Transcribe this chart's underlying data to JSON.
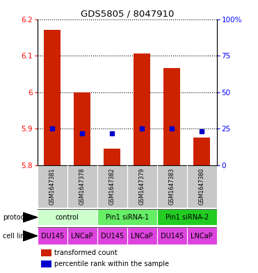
{
  "title": "GDS5805 / 8047910",
  "samples": [
    "GSM1647381",
    "GSM1647378",
    "GSM1647382",
    "GSM1647379",
    "GSM1647383",
    "GSM1647380"
  ],
  "bar_values": [
    6.17,
    6.0,
    5.845,
    6.105,
    6.065,
    5.875
  ],
  "bar_bottom": 5.8,
  "percentile_values": [
    25,
    22,
    22,
    25,
    25,
    23
  ],
  "ylim_left": [
    5.8,
    6.2
  ],
  "yticks_left": [
    5.8,
    5.9,
    6.0,
    6.1,
    6.2
  ],
  "yticklabels_left": [
    "5.8",
    "5.9",
    "6",
    "6.1",
    "6.2"
  ],
  "yticks_right": [
    0,
    25,
    50,
    75,
    100
  ],
  "yticklabels_right": [
    "0",
    "25",
    "50",
    "75",
    "100%"
  ],
  "protocol_groups": [
    {
      "label": "control",
      "span": [
        0,
        2
      ],
      "color": "#ccffcc"
    },
    {
      "label": "Pin1 siRNA-1",
      "span": [
        2,
        4
      ],
      "color": "#66ee66"
    },
    {
      "label": "Pin1 siRNA-2",
      "span": [
        4,
        6
      ],
      "color": "#22cc22"
    }
  ],
  "cell_lines": [
    "DU145",
    "LNCaP",
    "DU145",
    "LNCaP",
    "DU145",
    "LNCaP"
  ],
  "bar_color": "#cc2200",
  "dot_color": "#0000cc",
  "bg_color": "#c8c8c8",
  "cell_color": "#dd44dd",
  "bar_width": 0.55,
  "title_fontsize": 9.5,
  "tick_fontsize": 7.5,
  "label_fontsize": 7,
  "sample_fontsize": 5.8,
  "row_fontsize": 7
}
